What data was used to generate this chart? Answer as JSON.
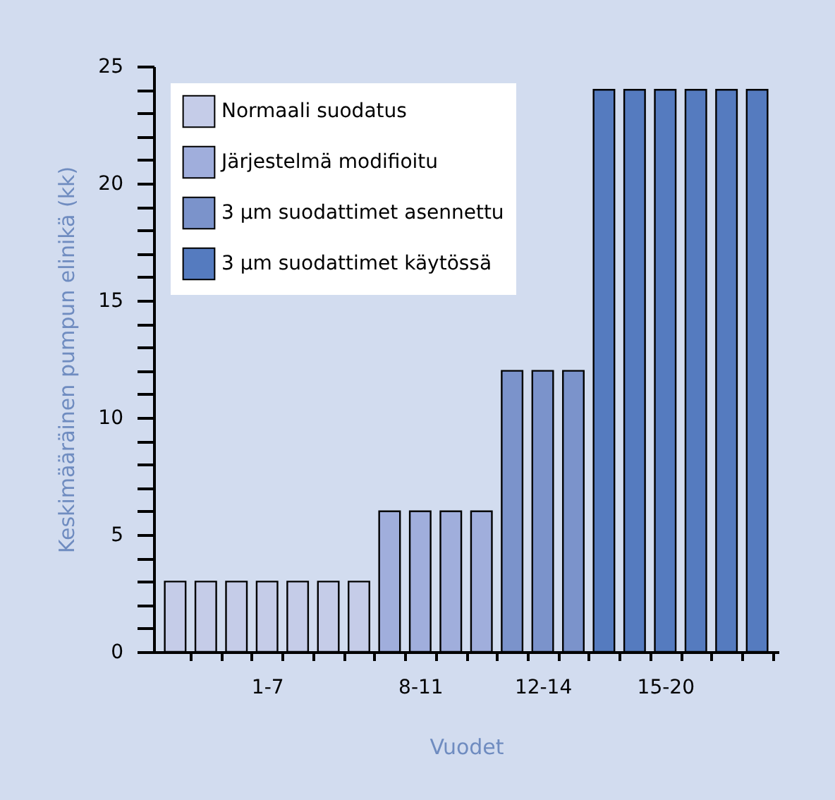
{
  "chart_data": {
    "type": "bar",
    "xlabel": "Vuodet",
    "ylabel": "Keskimääräinen pumpun elinikä (kk)",
    "categories": [
      null,
      null,
      null,
      "1-7",
      null,
      null,
      null,
      null,
      "8-11",
      null,
      null,
      null,
      "12-14",
      null,
      null,
      null,
      "15-20",
      null,
      null,
      null
    ],
    "series": [
      {
        "name": "Normaali suodatus",
        "color": "#c5cce8",
        "values": [
          3,
          3,
          3,
          3,
          3,
          3,
          3,
          null,
          null,
          null,
          null,
          null,
          null,
          null,
          null,
          null,
          null,
          null,
          null,
          null
        ]
      },
      {
        "name": "Järjestelmä modifioitu",
        "color": "#a0aedc",
        "values": [
          null,
          null,
          null,
          null,
          null,
          null,
          null,
          6,
          6,
          6,
          6,
          null,
          null,
          null,
          null,
          null,
          null,
          null,
          null,
          null
        ]
      },
      {
        "name": "3 µm suodattimet asennettu",
        "color": "#7b93cb",
        "values": [
          null,
          null,
          null,
          null,
          null,
          null,
          null,
          null,
          null,
          null,
          null,
          12,
          12,
          12,
          null,
          null,
          null,
          null,
          null,
          null
        ]
      },
      {
        "name": "3 µm suodattimet käytössä",
        "color": "#557bbf",
        "values": [
          null,
          null,
          null,
          null,
          null,
          null,
          null,
          null,
          null,
          null,
          null,
          null,
          null,
          null,
          24,
          24,
          24,
          24,
          24,
          24
        ]
      }
    ],
    "ylim": [
      0,
      25
    ],
    "yticks": [
      0,
      {
        "value": 1,
        "label": null
      },
      {
        "value": 2,
        "label": null
      },
      {
        "value": 3,
        "label": null
      },
      {
        "value": 4,
        "label": null
      },
      5,
      {
        "value": 6,
        "label": null
      },
      {
        "value": 7,
        "label": null
      },
      {
        "value": 8,
        "label": null
      },
      {
        "value": 9,
        "label": null
      },
      10,
      {
        "value": 11,
        "label": null
      },
      {
        "value": 12,
        "label": null
      },
      {
        "value": 13,
        "label": null
      },
      {
        "value": 14,
        "label": null
      },
      15,
      {
        "value": 16,
        "label": null
      },
      {
        "value": 17,
        "label": null
      },
      {
        "value": 18,
        "label": null
      },
      {
        "value": 19,
        "label": null
      },
      20,
      {
        "value": 21,
        "label": null
      },
      {
        "value": 22,
        "label": null
      },
      {
        "value": 23,
        "label": null
      },
      {
        "value": 24,
        "label": null
      },
      25
    ],
    "legend": "top left",
    "grid": false
  }
}
